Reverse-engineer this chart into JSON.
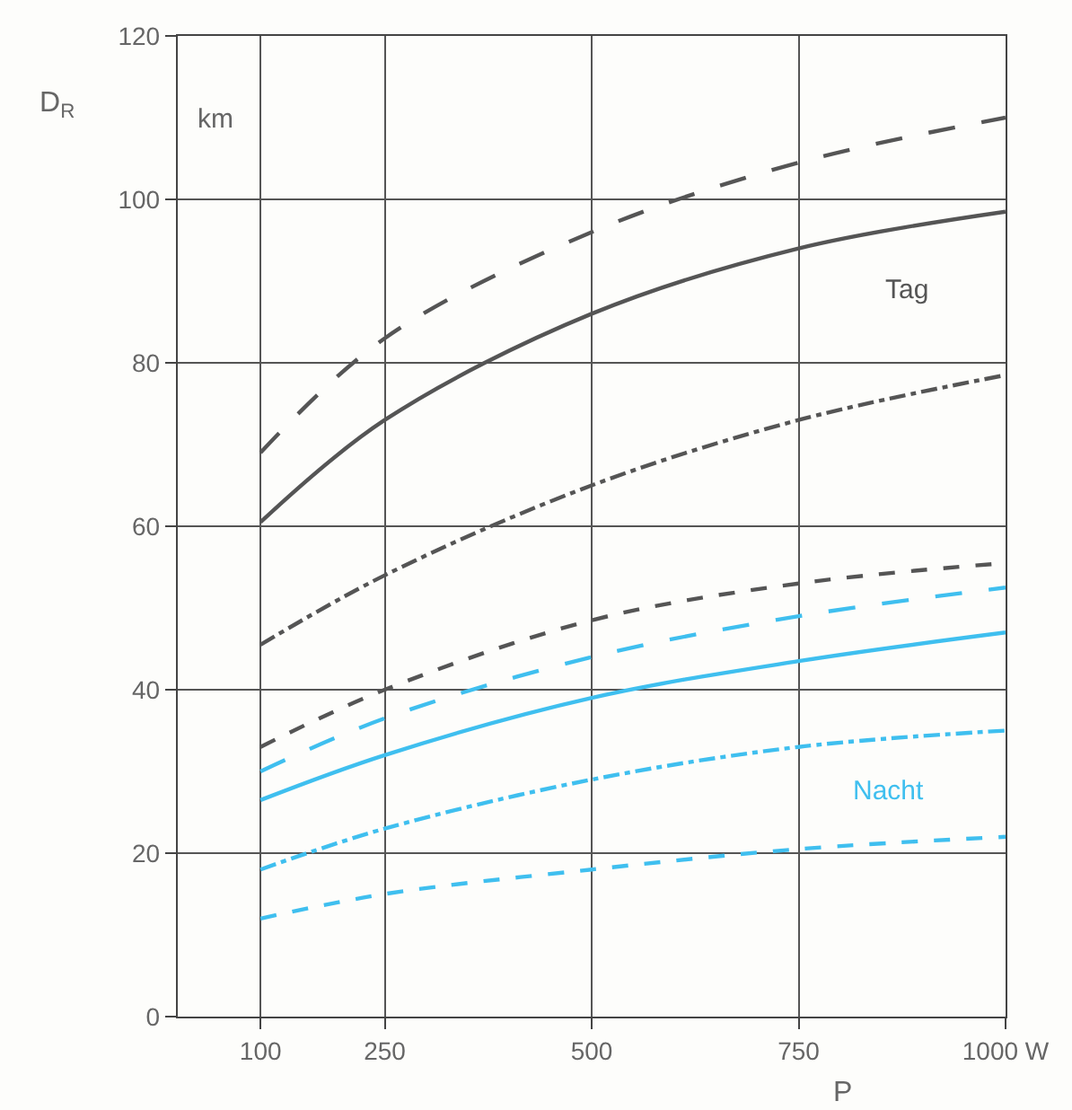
{
  "chart_data": {
    "type": "line",
    "ylabel": "D$_{R}$",
    "xlabel": "P",
    "x": [
      100,
      250,
      500,
      750,
      1000
    ],
    "xlim": [
      0,
      1000
    ],
    "xticks": [
      100,
      250,
      500,
      750,
      {
        "value": 1000,
        "label": "1000 W"
      }
    ],
    "ylim": [
      0,
      120
    ],
    "yticks": [
      0,
      20,
      40,
      60,
      80,
      100,
      120
    ],
    "grid": true,
    "marker": "none",
    "annotations": [
      "km",
      "Tag",
      "Nacht"
    ],
    "series": [
      {
        "color": "#555555",
        "line_style": "dashed",
        "values": [
          69,
          83,
          96,
          104.5,
          110
        ]
      },
      {
        "color": "#555555",
        "line_style": "solid",
        "values": [
          60.5,
          73,
          86,
          94,
          98.5
        ]
      },
      {
        "color": "#555555",
        "line_style": "dashdot",
        "values": [
          45.5,
          54,
          65,
          73,
          78.5
        ]
      },
      {
        "color": "#555555",
        "line_style": "dotted",
        "values": [
          33,
          40,
          48.5,
          53,
          55.5
        ]
      },
      {
        "color": "#3fbfef",
        "line_style": "dashed",
        "values": [
          30,
          36.5,
          44,
          49,
          52.5
        ]
      },
      {
        "color": "#3fbfef",
        "line_style": "solid",
        "values": [
          26.5,
          32,
          39,
          43.5,
          47
        ]
      },
      {
        "color": "#3fbfef",
        "line_style": "dashdot",
        "values": [
          18,
          23,
          29,
          33,
          35
        ]
      },
      {
        "color": "#3fbfef",
        "line_style": "dotted",
        "values": [
          12,
          15,
          18,
          20.5,
          22
        ]
      }
    ]
  }
}
